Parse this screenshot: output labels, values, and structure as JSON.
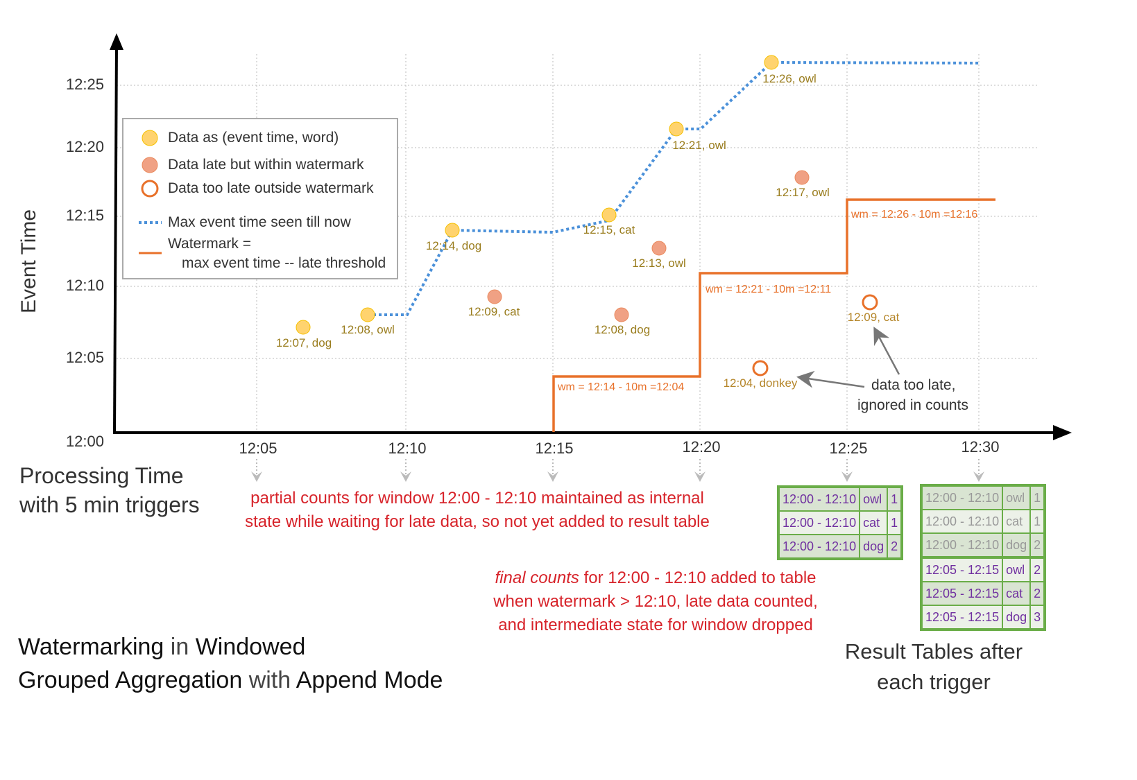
{
  "axes": {
    "y_label": "Event Time",
    "y_ticks": [
      "12:25",
      "12:20",
      "12:15",
      "12:10",
      "12:05",
      "12:00"
    ],
    "x_ticks": [
      "12:05",
      "12:10",
      "12:15",
      "12:20",
      "12:25",
      "12:30"
    ],
    "x_label_line1": "Processing Time",
    "x_label_line2": "with 5 min triggers"
  },
  "legend": {
    "on_time": "Data as (event time, word)",
    "late_within": "Data late but within watermark",
    "too_late": "Data too late outside watermark",
    "max_event": "Max event time seen till now",
    "watermark_line1": "Watermark =",
    "watermark_line2": "max event time -- late threshold"
  },
  "colors": {
    "on_time": "#ffd36e",
    "late": "#f0a184",
    "too_late": "#e8712a",
    "max_line": "#4a90d9",
    "watermark": "#e8712a",
    "table_border": "#6aad48",
    "note": "#d7232a",
    "table_text": "#7030a0"
  },
  "points": [
    {
      "label": "12:07, dog",
      "type": "on_time"
    },
    {
      "label": "12:08, owl",
      "type": "on_time"
    },
    {
      "label": "12:14, dog",
      "type": "on_time"
    },
    {
      "label": "12:09, cat",
      "type": "late"
    },
    {
      "label": "12:15, cat",
      "type": "on_time"
    },
    {
      "label": "12:08, dog",
      "type": "late"
    },
    {
      "label": "12:13, owl",
      "type": "late"
    },
    {
      "label": "12:21, owl",
      "type": "on_time"
    },
    {
      "label": "12:26, owl",
      "type": "on_time"
    },
    {
      "label": "12:17, owl",
      "type": "late"
    },
    {
      "label": "12:04, donkey",
      "type": "too_late"
    },
    {
      "label": "12:09, cat",
      "type": "too_late"
    }
  ],
  "watermarks": [
    "wm = 12:14 - 10m =12:04",
    "wm = 12:21 - 10m =12:11",
    "wm = 12:26 - 10m =12:16"
  ],
  "annotations": {
    "too_late_line1": "data too late,",
    "too_late_line2": "ignored in counts",
    "partial_line1": "partial counts for window 12:00 - 12:10 maintained as internal",
    "partial_line2": "state while waiting for late data, so not yet added  to result table",
    "final_em": "final counts",
    "final_line1_rest": " for 12:00 - 12:10 added to table",
    "final_line2": "when watermark > 12:10, late data counted,",
    "final_line3": "and intermediate state for window dropped"
  },
  "title": {
    "w1": "Watermarking",
    "w2": " in ",
    "w3": "Windowed",
    "w4": "Grouped Aggregation",
    "w5": " with ",
    "w6": "Append Mode"
  },
  "result_caption_line1": "Result Tables after",
  "result_caption_line2": "each trigger",
  "tables": [
    {
      "rows": [
        [
          "12:00 - 12:10",
          "owl",
          "1"
        ],
        [
          "12:00 - 12:10",
          "cat",
          "1"
        ],
        [
          "12:00 - 12:10",
          "dog",
          "2"
        ]
      ]
    },
    {
      "rows": [
        [
          "12:00 - 12:10",
          "owl",
          "1"
        ],
        [
          "12:00 - 12:10",
          "cat",
          "1"
        ],
        [
          "12:00 - 12:10",
          "dog",
          "2"
        ],
        [
          "12:05 - 12:15",
          "owl",
          "2"
        ],
        [
          "12:05 - 12:15",
          "cat",
          "2"
        ],
        [
          "12:05 - 12:15",
          "dog",
          "3"
        ]
      ]
    }
  ]
}
